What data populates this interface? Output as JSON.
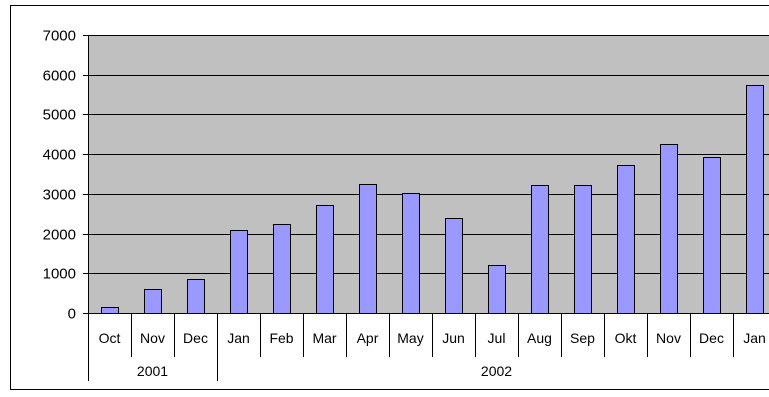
{
  "chart_data": {
    "type": "bar",
    "categories": [
      "Oct",
      "Nov",
      "Dec",
      "Jan",
      "Feb",
      "Mar",
      "Apr",
      "May",
      "Jun",
      "Jul",
      "Aug",
      "Sep",
      "Okt",
      "Nov",
      "Dec",
      "Jan"
    ],
    "groups": [
      {
        "label": "2001",
        "count": 3
      },
      {
        "label": "2002",
        "count": 13
      }
    ],
    "values": [
      150,
      600,
      850,
      2100,
      2250,
      2720,
      3250,
      3020,
      2400,
      1220,
      3230,
      3230,
      3720,
      4250,
      3930,
      5740
    ],
    "ylim": [
      0,
      7000
    ],
    "yticks": [
      0,
      1000,
      2000,
      3000,
      4000,
      5000,
      6000,
      7000
    ],
    "ytick_labels": [
      "0",
      "1000",
      "2000",
      "3000",
      "4000",
      "5000",
      "6000",
      "7000"
    ],
    "grid": true,
    "colors": {
      "bar_fill": "#9999ff",
      "bar_stroke": "#000000",
      "plot_background": "#c0c0c0",
      "gridline": "#000000",
      "frame": "#000000",
      "page_background": "#ffffff"
    }
  }
}
